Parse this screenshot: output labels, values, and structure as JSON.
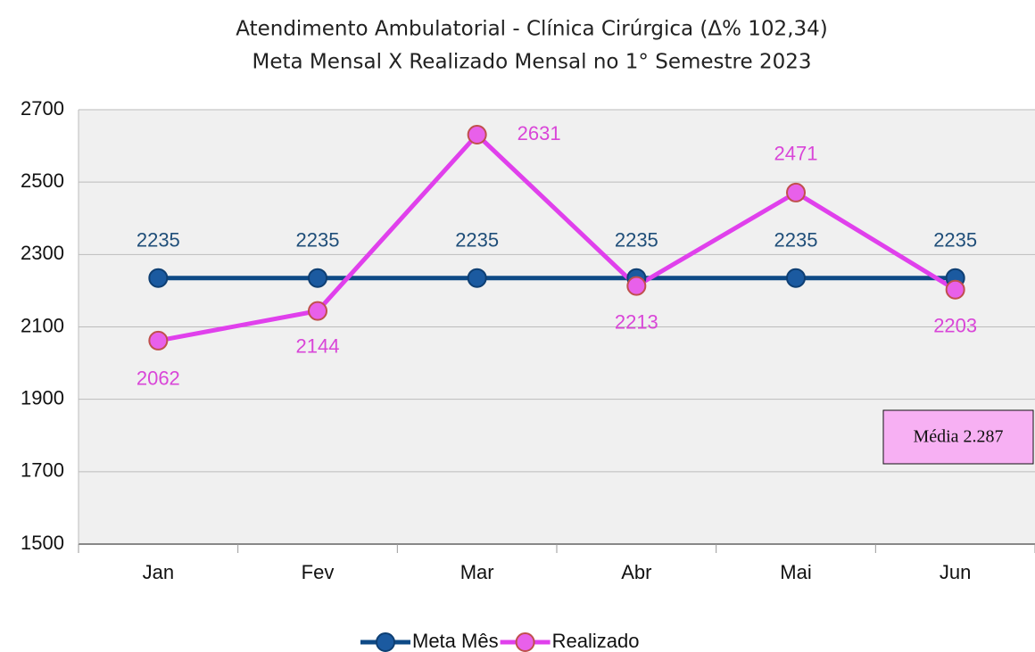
{
  "chart_data": {
    "type": "line",
    "title": "Atendimento Ambulatorial - Clínica Cirúrgica (Δ% 102,34)",
    "subtitle": "Meta Mensal X Realizado Mensal no 1° Semestre 2023",
    "categories": [
      "Jan",
      "Fev",
      "Mar",
      "Abr",
      "Mai",
      "Jun"
    ],
    "series": [
      {
        "name": "Meta Mês",
        "color": "#0e4a86",
        "values": [
          2235,
          2235,
          2235,
          2235,
          2235,
          2235
        ]
      },
      {
        "name": "Realizado",
        "color": "#e040ec",
        "values": [
          2062,
          2144,
          2631,
          2213,
          2471,
          2203
        ]
      }
    ],
    "ylim": [
      1500,
      2700
    ],
    "yticks": [
      1500,
      1700,
      1900,
      2100,
      2300,
      2500,
      2700
    ],
    "grid": true,
    "legend": "bottom",
    "annotation": "Média 2.287"
  }
}
